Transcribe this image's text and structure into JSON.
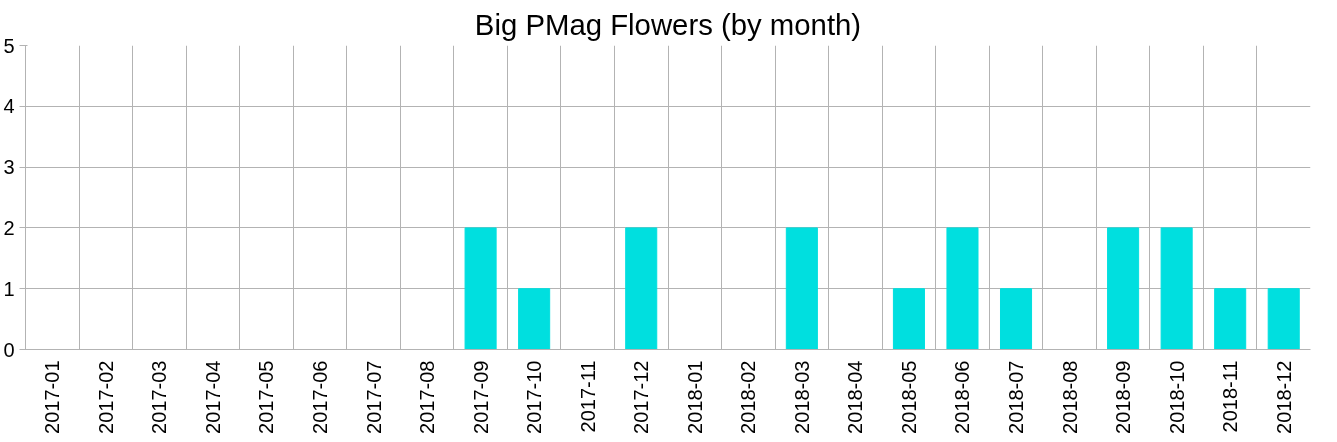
{
  "chart_data": {
    "type": "bar",
    "title": "Big PMag Flowers (by month)",
    "categories": [
      "2017-01",
      "2017-02",
      "2017-03",
      "2017-04",
      "2017-05",
      "2017-06",
      "2017-07",
      "2017-08",
      "2017-09",
      "2017-10",
      "2017-11",
      "2017-12",
      "2018-01",
      "2018-02",
      "2018-03",
      "2018-04",
      "2018-05",
      "2018-06",
      "2018-07",
      "2018-08",
      "2018-09",
      "2018-10",
      "2018-11",
      "2018-12"
    ],
    "values": [
      0,
      0,
      0,
      0,
      0,
      0,
      0,
      0,
      2,
      1,
      0,
      2,
      0,
      0,
      2,
      0,
      1,
      2,
      1,
      0,
      2,
      2,
      1,
      1
    ],
    "color": "#00dfdf",
    "ylim": [
      0,
      5
    ],
    "yticks": [
      0,
      1,
      2,
      3,
      4,
      5
    ],
    "grid": true
  }
}
